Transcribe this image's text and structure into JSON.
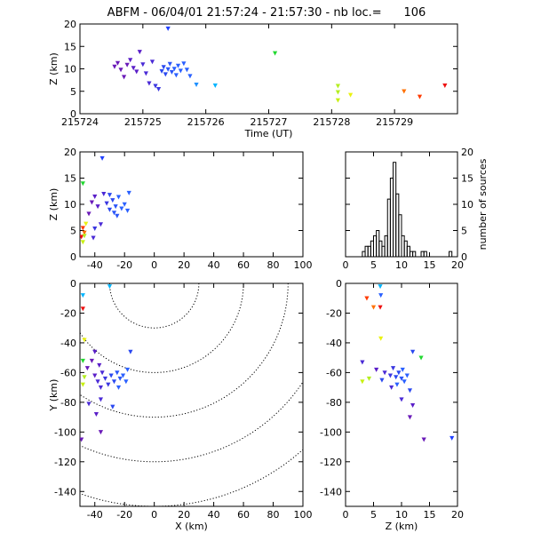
{
  "title": "ABFM - 06/04/01 21:57:24 - 21:57:30 - nb loc.=      106",
  "chart_data": [
    {
      "type": "scatter",
      "panel": "time-altitude",
      "xlabel": "Time (UT)",
      "ylabel": "Z (km)",
      "xlim": [
        215724,
        215730
      ],
      "ylim": [
        0,
        20
      ],
      "xticks": [
        "215724",
        "215725",
        "215726",
        "215727",
        "215728",
        "215729"
      ],
      "yticks": [
        "0",
        "5",
        "10",
        "15",
        "20"
      ],
      "points": [
        {
          "t": 215724.55,
          "z": 10.5,
          "c": "#6a1ab8"
        },
        {
          "t": 215724.6,
          "z": 11.3,
          "c": "#6a1ab8"
        },
        {
          "t": 215724.65,
          "z": 9.8,
          "c": "#6a1ab8"
        },
        {
          "t": 215724.7,
          "z": 8.2,
          "c": "#6a1ab8"
        },
        {
          "t": 215724.75,
          "z": 10.9,
          "c": "#6a1ab8"
        },
        {
          "t": 215724.8,
          "z": 12.0,
          "c": "#5a1ec8"
        },
        {
          "t": 215724.85,
          "z": 10.2,
          "c": "#5a1ec8"
        },
        {
          "t": 215724.9,
          "z": 9.4,
          "c": "#5a1ec8"
        },
        {
          "t": 215724.95,
          "z": 13.8,
          "c": "#5a1ec8"
        },
        {
          "t": 215725.0,
          "z": 11.0,
          "c": "#4a2ad6"
        },
        {
          "t": 215725.05,
          "z": 9.0,
          "c": "#4a2ad6"
        },
        {
          "t": 215725.1,
          "z": 6.8,
          "c": "#4a2ad6"
        },
        {
          "t": 215725.15,
          "z": 11.6,
          "c": "#4a2ad6"
        },
        {
          "t": 215725.2,
          "z": 6.2,
          "c": "#3a36e0"
        },
        {
          "t": 215725.25,
          "z": 5.5,
          "c": "#3a36e0"
        },
        {
          "t": 215725.3,
          "z": 9.5,
          "c": "#2a48f0"
        },
        {
          "t": 215725.33,
          "z": 10.4,
          "c": "#2a48f0"
        },
        {
          "t": 215725.36,
          "z": 8.8,
          "c": "#2a48f0"
        },
        {
          "t": 215725.4,
          "z": 9.9,
          "c": "#2a55f8"
        },
        {
          "t": 215725.43,
          "z": 11.1,
          "c": "#2a55f8"
        },
        {
          "t": 215725.46,
          "z": 9.3,
          "c": "#2a55f8"
        },
        {
          "t": 215725.5,
          "z": 10.0,
          "c": "#2a60ff"
        },
        {
          "t": 215725.53,
          "z": 8.6,
          "c": "#2a60ff"
        },
        {
          "t": 215725.56,
          "z": 10.7,
          "c": "#2a60ff"
        },
        {
          "t": 215725.6,
          "z": 9.6,
          "c": "#2a60ff"
        },
        {
          "t": 215725.65,
          "z": 11.2,
          "c": "#2a60ff"
        },
        {
          "t": 215725.7,
          "z": 9.8,
          "c": "#2a60ff"
        },
        {
          "t": 215725.75,
          "z": 8.4,
          "c": "#2a60ff"
        },
        {
          "t": 215725.4,
          "z": 19.0,
          "c": "#2040ff"
        },
        {
          "t": 215725.85,
          "z": 6.5,
          "c": "#1e90ff"
        },
        {
          "t": 215726.15,
          "z": 6.3,
          "c": "#00b4ff"
        },
        {
          "t": 215727.1,
          "z": 13.5,
          "c": "#22d830"
        },
        {
          "t": 215728.1,
          "z": 6.2,
          "c": "#b4ee20"
        },
        {
          "t": 215728.1,
          "z": 4.8,
          "c": "#b4ee20"
        },
        {
          "t": 215728.1,
          "z": 3.0,
          "c": "#c8f010"
        },
        {
          "t": 215728.3,
          "z": 4.2,
          "c": "#eaf210"
        },
        {
          "t": 215729.15,
          "z": 5.0,
          "c": "#ff7000"
        },
        {
          "t": 215729.4,
          "z": 3.8,
          "c": "#ff3a00"
        },
        {
          "t": 215729.8,
          "z": 6.3,
          "c": "#ee1010"
        }
      ]
    },
    {
      "type": "scatter",
      "panel": "x-altitude",
      "xlabel": "",
      "ylabel": "Z (km)",
      "xlim": [
        -50,
        100
      ],
      "ylim": [
        0,
        20
      ],
      "xticks": [
        "-40",
        "-20",
        "0",
        "20",
        "40",
        "60",
        "80",
        "100"
      ],
      "yticks": [
        "0",
        "5",
        "10",
        "15",
        "20"
      ],
      "points": [
        {
          "x": -48,
          "z": 14.0,
          "c": "#22d830"
        },
        {
          "x": -48,
          "z": 5.5,
          "c": "#ff3a00"
        },
        {
          "x": -47,
          "z": 4.6,
          "c": "#ff7000"
        },
        {
          "x": -49,
          "z": 3.8,
          "c": "#ee1010"
        },
        {
          "x": -48,
          "z": 2.8,
          "c": "#c8f010"
        },
        {
          "x": -47,
          "z": 4.0,
          "c": "#b4ee20"
        },
        {
          "x": -46,
          "z": 6.3,
          "c": "#eaf210"
        },
        {
          "x": -44,
          "z": 8.2,
          "c": "#6a1ab8"
        },
        {
          "x": -42,
          "z": 10.4,
          "c": "#6a1ab8"
        },
        {
          "x": -40,
          "z": 11.5,
          "c": "#5a1ec8"
        },
        {
          "x": -38,
          "z": 9.6,
          "c": "#5a1ec8"
        },
        {
          "x": -36,
          "z": 6.2,
          "c": "#4a2ad6"
        },
        {
          "x": -40,
          "z": 5.4,
          "c": "#3a36e0"
        },
        {
          "x": -41,
          "z": 3.6,
          "c": "#4a2ad6"
        },
        {
          "x": -35,
          "z": 18.8,
          "c": "#2040ff"
        },
        {
          "x": -34,
          "z": 12.0,
          "c": "#4a2ad6"
        },
        {
          "x": -32,
          "z": 10.2,
          "c": "#3a36e0"
        },
        {
          "x": -30,
          "z": 9.0,
          "c": "#2a48f0"
        },
        {
          "x": -28,
          "z": 10.8,
          "c": "#2a48f0"
        },
        {
          "x": -27,
          "z": 8.4,
          "c": "#2a55f8"
        },
        {
          "x": -26,
          "z": 9.6,
          "c": "#2a55f8"
        },
        {
          "x": -24,
          "z": 11.4,
          "c": "#2a60ff"
        },
        {
          "x": -22,
          "z": 9.2,
          "c": "#2a60ff"
        },
        {
          "x": -20,
          "z": 10.0,
          "c": "#2a60ff"
        },
        {
          "x": -18,
          "z": 8.8,
          "c": "#2a60ff"
        },
        {
          "x": -17,
          "z": 12.2,
          "c": "#2a60ff"
        },
        {
          "x": -30,
          "z": 11.8,
          "c": "#2a48f0"
        },
        {
          "x": -25,
          "z": 7.8,
          "c": "#2a55f8"
        }
      ]
    },
    {
      "type": "bar",
      "panel": "altitude-histogram",
      "xlabel": "",
      "ylabel": "number of sources",
      "xlim": [
        0,
        20
      ],
      "ylim": [
        0,
        20
      ],
      "xticks": [
        "0",
        "5",
        "10",
        "15",
        "20"
      ],
      "yticks": [
        "0",
        "5",
        "10",
        "15",
        "20"
      ],
      "bin_width": 0.5,
      "bin_starts": [
        2.5,
        3.0,
        3.5,
        4.0,
        4.5,
        5.0,
        5.5,
        6.0,
        6.5,
        7.0,
        7.5,
        8.0,
        8.5,
        9.0,
        9.5,
        10.0,
        10.5,
        11.0,
        11.5,
        12.0,
        12.5,
        13.0,
        13.5,
        14.0,
        18.5
      ],
      "counts": [
        0,
        1,
        2,
        2,
        3,
        4,
        5,
        3,
        2,
        4,
        11,
        15,
        18,
        12,
        8,
        4,
        3,
        2,
        1,
        1,
        0,
        0,
        1,
        1,
        1
      ]
    },
    {
      "type": "scatter",
      "panel": "plan-view",
      "xlabel": "X (km)",
      "ylabel": "Y (km)",
      "xlim": [
        -50,
        100
      ],
      "ylim": [
        -150,
        0
      ],
      "xticks": [
        "-40",
        "-20",
        "0",
        "20",
        "40",
        "60",
        "80",
        "100"
      ],
      "yticks": [
        "-140",
        "-120",
        "-100",
        "-80",
        "-60",
        "-40",
        "-20",
        "0"
      ],
      "range_rings_km": [
        30,
        60,
        90,
        120,
        150
      ],
      "ring_center": [
        0,
        0
      ],
      "points": [
        {
          "x": -48,
          "y": -8,
          "c": "#00b4ff"
        },
        {
          "x": -48,
          "y": -17,
          "c": "#ee1010"
        },
        {
          "x": -47,
          "y": -38,
          "c": "#eaf210"
        },
        {
          "x": -48,
          "y": -52,
          "c": "#22d830"
        },
        {
          "x": -47,
          "y": -63,
          "c": "#b4ee20"
        },
        {
          "x": -48,
          "y": -68,
          "c": "#c8f010"
        },
        {
          "x": -45,
          "y": -57,
          "c": "#6a1ab8"
        },
        {
          "x": -42,
          "y": -52,
          "c": "#6a1ab8"
        },
        {
          "x": -40,
          "y": -46,
          "c": "#5a1ec8"
        },
        {
          "x": -37,
          "y": -55,
          "c": "#5a1ec8"
        },
        {
          "x": -40,
          "y": -62,
          "c": "#5a1ec8"
        },
        {
          "x": -38,
          "y": -66,
          "c": "#4a2ad6"
        },
        {
          "x": -36,
          "y": -70,
          "c": "#4a2ad6"
        },
        {
          "x": -35,
          "y": -60,
          "c": "#4a2ad6"
        },
        {
          "x": -33,
          "y": -64,
          "c": "#3a36e0"
        },
        {
          "x": -31,
          "y": -68,
          "c": "#3a36e0"
        },
        {
          "x": -29,
          "y": -62,
          "c": "#2a48f0"
        },
        {
          "x": -27,
          "y": -66,
          "c": "#2a48f0"
        },
        {
          "x": -25,
          "y": -60,
          "c": "#2a55f8"
        },
        {
          "x": -23,
          "y": -64,
          "c": "#2a55f8"
        },
        {
          "x": -21,
          "y": -62,
          "c": "#2a60ff"
        },
        {
          "x": -19,
          "y": -66,
          "c": "#2a60ff"
        },
        {
          "x": -24,
          "y": -70,
          "c": "#2a60ff"
        },
        {
          "x": -18,
          "y": -58,
          "c": "#2a60ff"
        },
        {
          "x": -16,
          "y": -46,
          "c": "#2a48f0"
        },
        {
          "x": -28,
          "y": -83,
          "c": "#2a48f0"
        },
        {
          "x": -36,
          "y": -78,
          "c": "#4a2ad6"
        },
        {
          "x": -44,
          "y": -81,
          "c": "#4a2ad6"
        },
        {
          "x": -39,
          "y": -88,
          "c": "#5a1ec8"
        },
        {
          "x": -36,
          "y": -100,
          "c": "#6a1ab8"
        },
        {
          "x": -49,
          "y": -105,
          "c": "#6a1ab8"
        },
        {
          "x": -30,
          "y": -2,
          "c": "#00b4ff"
        }
      ]
    },
    {
      "type": "scatter",
      "panel": "altitude-y",
      "xlabel": "Z (km)",
      "ylabel": "",
      "xlim": [
        0,
        20
      ],
      "ylim": [
        -150,
        0
      ],
      "xticks": [
        "0",
        "5",
        "10",
        "15",
        "20"
      ],
      "yticks": [
        "-140",
        "-120",
        "-100",
        "-80",
        "-60",
        "-40",
        "-20",
        "0"
      ],
      "points": [
        {
          "z": 6.2,
          "y": -2,
          "c": "#00b4ff"
        },
        {
          "z": 6.3,
          "y": -8,
          "c": "#2a60ff"
        },
        {
          "z": 3.8,
          "y": -10,
          "c": "#ff3a00"
        },
        {
          "z": 5.0,
          "y": -16,
          "c": "#ff7000"
        },
        {
          "z": 6.2,
          "y": -16,
          "c": "#ee1010"
        },
        {
          "z": 6.3,
          "y": -37,
          "c": "#eaf210"
        },
        {
          "z": 13.5,
          "y": -50,
          "c": "#22d830"
        },
        {
          "z": 3.0,
          "y": -66,
          "c": "#c8f010"
        },
        {
          "z": 4.2,
          "y": -64,
          "c": "#b4ee20"
        },
        {
          "z": 3.0,
          "y": -53,
          "c": "#4a2ad6"
        },
        {
          "z": 5.5,
          "y": -58,
          "c": "#5a1ec8"
        },
        {
          "z": 7.0,
          "y": -60,
          "c": "#4a2ad6"
        },
        {
          "z": 8.0,
          "y": -62,
          "c": "#3a36e0"
        },
        {
          "z": 8.5,
          "y": -57,
          "c": "#3a36e0"
        },
        {
          "z": 9.0,
          "y": -63,
          "c": "#2a48f0"
        },
        {
          "z": 9.5,
          "y": -60,
          "c": "#2a48f0"
        },
        {
          "z": 10.0,
          "y": -64,
          "c": "#2a55f8"
        },
        {
          "z": 10.5,
          "y": -66,
          "c": "#2a60ff"
        },
        {
          "z": 9.2,
          "y": -68,
          "c": "#2a60ff"
        },
        {
          "z": 10.2,
          "y": -58,
          "c": "#2a60ff"
        },
        {
          "z": 11.0,
          "y": -62,
          "c": "#2a60ff"
        },
        {
          "z": 11.5,
          "y": -72,
          "c": "#2a48f0"
        },
        {
          "z": 12.0,
          "y": -46,
          "c": "#2a48f0"
        },
        {
          "z": 8.2,
          "y": -70,
          "c": "#4a2ad6"
        },
        {
          "z": 10.0,
          "y": -78,
          "c": "#4a2ad6"
        },
        {
          "z": 12.0,
          "y": -82,
          "c": "#5a1ec8"
        },
        {
          "z": 11.5,
          "y": -90,
          "c": "#6a1ab8"
        },
        {
          "z": 14.0,
          "y": -105,
          "c": "#6a1ab8"
        },
        {
          "z": 19.0,
          "y": -104,
          "c": "#2040ff"
        },
        {
          "z": 6.5,
          "y": -65,
          "c": "#2a48f0"
        }
      ]
    }
  ]
}
